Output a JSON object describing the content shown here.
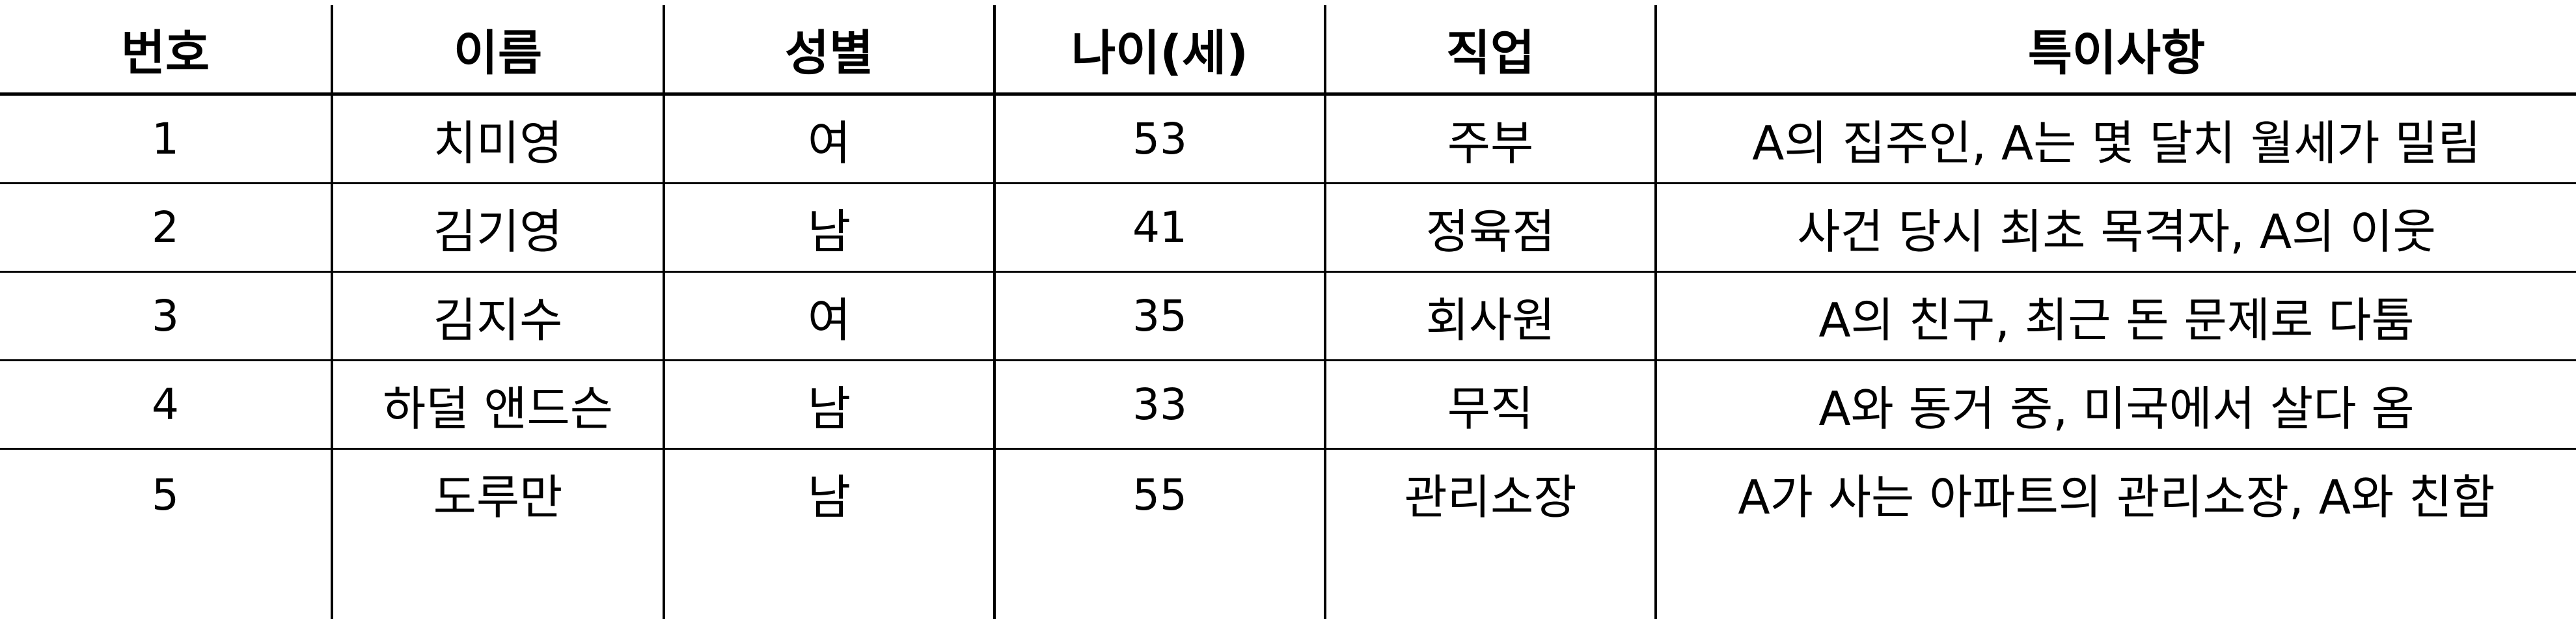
{
  "table": {
    "headers": [
      "번호",
      "이름",
      "성별",
      "나이(세)",
      "직업",
      "특이사항"
    ],
    "rows": [
      [
        "1",
        "치미영",
        "여",
        "53",
        "주부",
        "A의 집주인, A는 몇 달치 월세가 밀림"
      ],
      [
        "2",
        "김기영",
        "남",
        "41",
        "정육점",
        "사건 당시 최초 목격자, A의 이웃"
      ],
      [
        "3",
        "김지수",
        "여",
        "35",
        "회사원",
        "A의 친구, 최근 돈 문제로 다툼"
      ],
      [
        "4",
        "하덜 앤드슨",
        "남",
        "33",
        "무직",
        "A와 동거 중, 미국에서 살다 옴"
      ],
      [
        "5",
        "도루만",
        "남",
        "55",
        "관리소장",
        "A가 사는 아파트의 관리소장, A와 친함"
      ]
    ]
  }
}
